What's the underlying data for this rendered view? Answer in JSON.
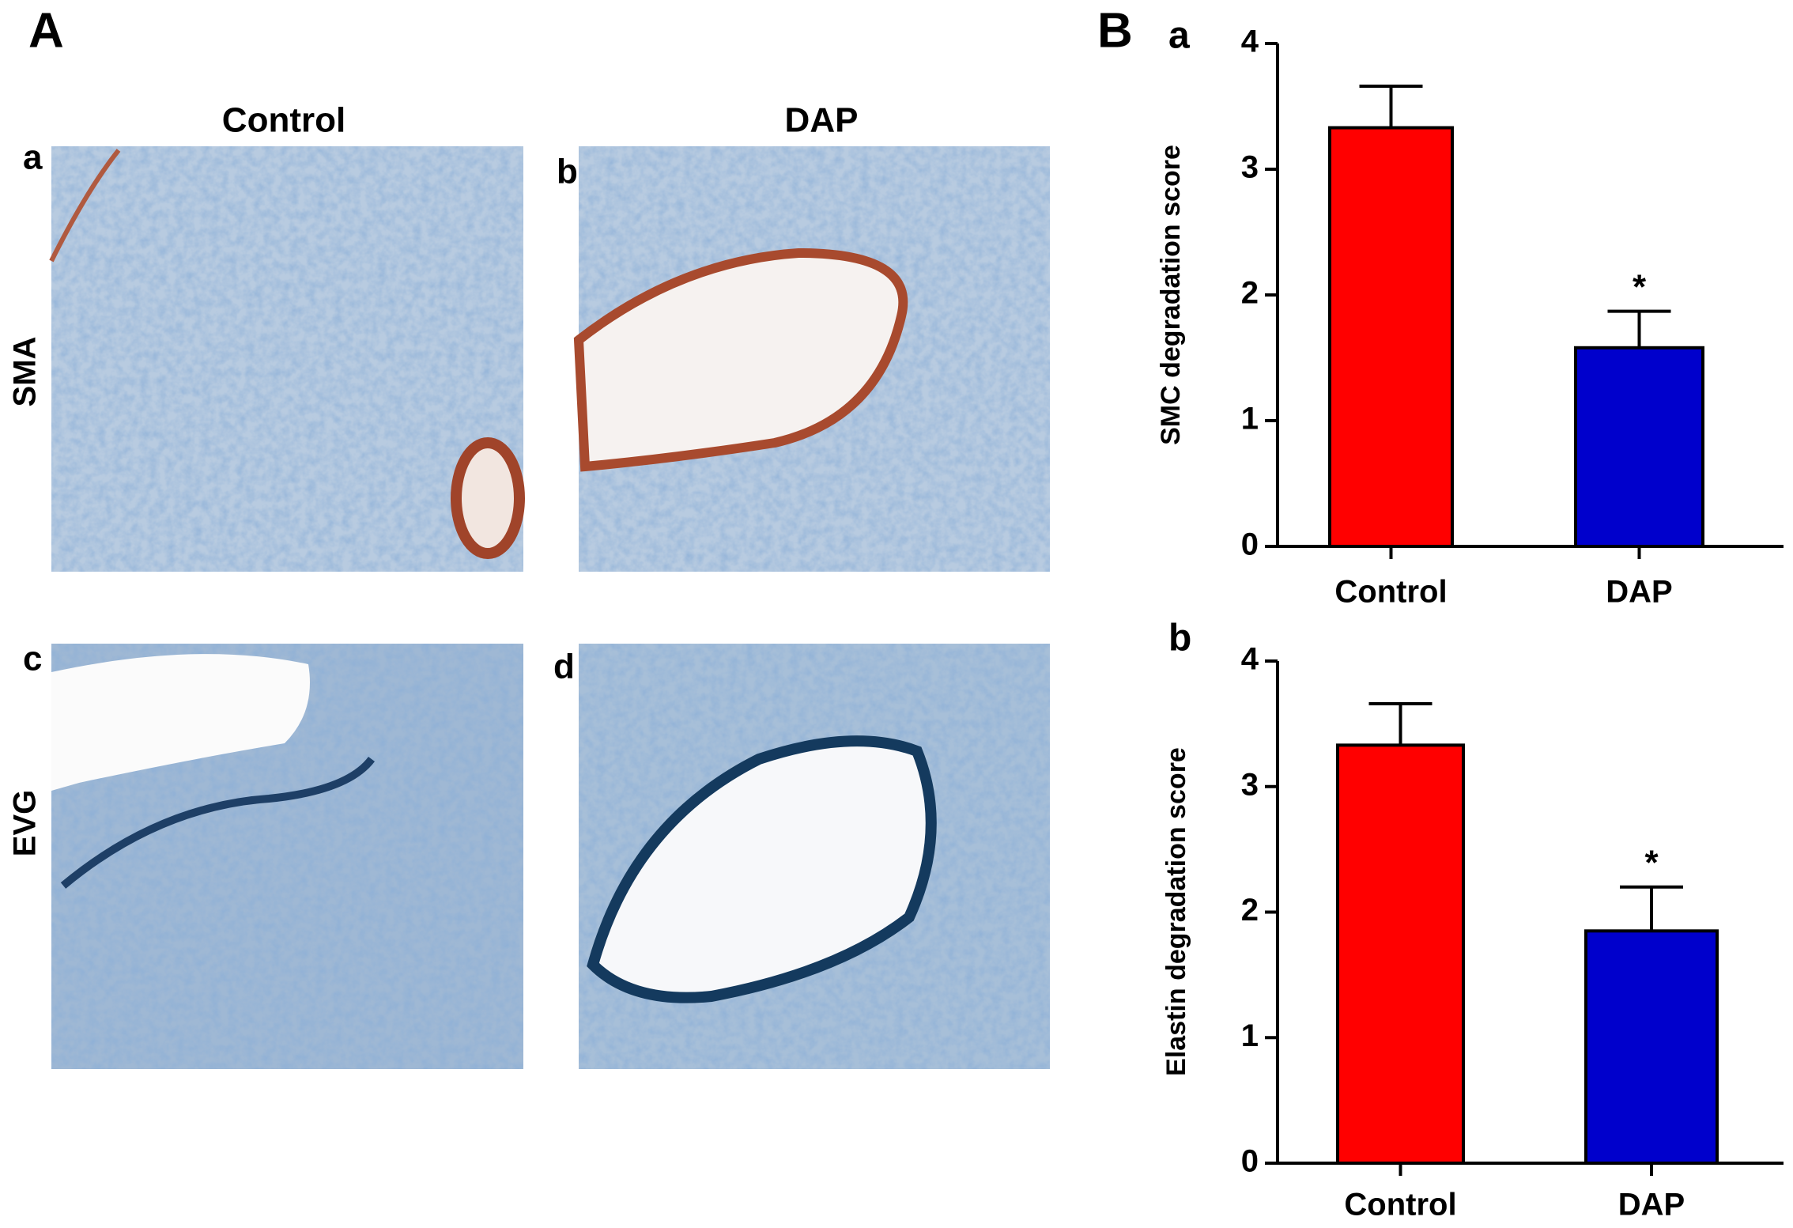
{
  "panel_a": {
    "label": "A",
    "columns": [
      "Control",
      "DAP"
    ],
    "rows": [
      "SMA",
      "EVG"
    ],
    "images": [
      "a",
      "b",
      "c",
      "d"
    ]
  },
  "panel_b": {
    "label": "B"
  },
  "chart_data": [
    {
      "type": "bar",
      "panel_label": "a",
      "y_label": "SMC degradation score",
      "categories": [
        "Control",
        "DAP"
      ],
      "values": [
        3.33,
        1.58
      ],
      "errors": [
        0.33,
        0.29
      ],
      "colors": [
        "#ff0000",
        "#0000cc"
      ],
      "significance": [
        null,
        "*"
      ],
      "ylim": [
        0,
        4
      ],
      "yticks": [
        0,
        1,
        2,
        3,
        4
      ]
    },
    {
      "type": "bar",
      "panel_label": "b",
      "y_label": "Elastin degradation score",
      "categories": [
        "Control",
        "DAP"
      ],
      "values": [
        3.33,
        1.85
      ],
      "errors": [
        0.33,
        0.35
      ],
      "colors": [
        "#ff0000",
        "#0000cc"
      ],
      "significance": [
        null,
        "*"
      ],
      "ylim": [
        0,
        4
      ],
      "yticks": [
        0,
        1,
        2,
        3,
        4
      ]
    }
  ]
}
